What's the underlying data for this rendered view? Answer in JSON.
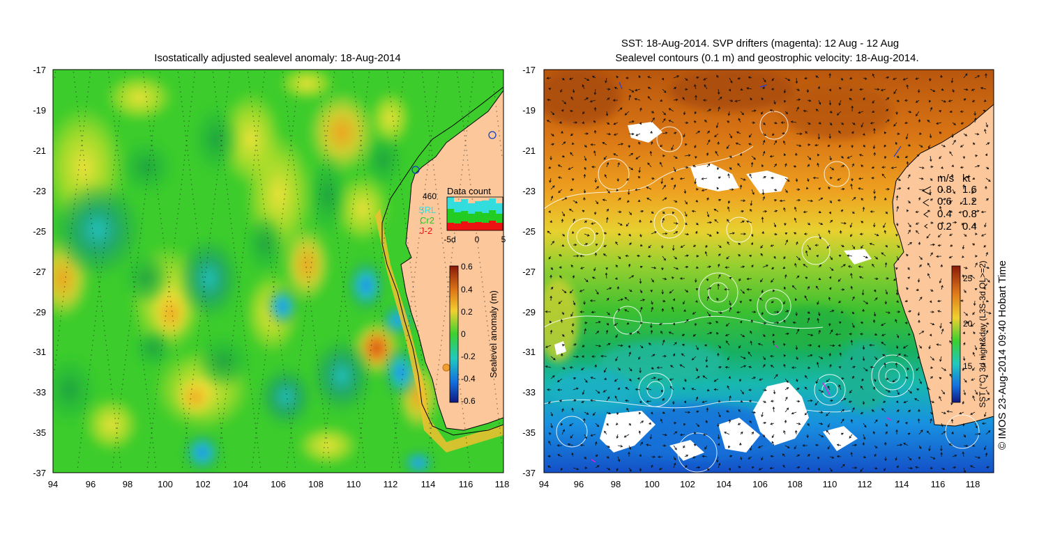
{
  "left_map": {
    "title": "Isostatically adjusted sealevel anomaly: 18-Aug-2014",
    "lat_ticks": [
      "-17",
      "-19",
      "-21",
      "-23",
      "-25",
      "-27",
      "-29",
      "-31",
      "-33",
      "-35",
      "-37"
    ],
    "lon_ticks": [
      "94",
      "96",
      "98",
      "100",
      "102",
      "104",
      "106",
      "108",
      "110",
      "112",
      "114",
      "116",
      "118"
    ],
    "colorbar": {
      "label": "Sealevel anomaly (m)",
      "ticks": [
        "0.6",
        "0.4",
        "0.2",
        "0",
        "-0.2",
        "-0.4",
        "-0.6"
      ]
    },
    "data_count": {
      "title": "Data count",
      "max_label": "460",
      "satellites": [
        {
          "name": "SRL",
          "color": "#33dddd"
        },
        {
          "name": "Cr2",
          "color": "#22cc22"
        },
        {
          "name": "J-2",
          "color": "#ee1111"
        }
      ],
      "x_ticks": [
        "-5d",
        "0",
        "5"
      ]
    }
  },
  "right_map": {
    "title_line1": "SST: 18-Aug-2014. SVP drifters (magenta): 12 Aug - 12 Aug",
    "title_line2": "Sealevel contours (0.1 m) and geostrophic velocity: 18-Aug-2014.",
    "lat_ticks": [
      "-17",
      "-19",
      "-21",
      "-23",
      "-25",
      "-27",
      "-29",
      "-31",
      "-33",
      "-35",
      "-37"
    ],
    "lon_ticks": [
      "94",
      "96",
      "98",
      "100",
      "102",
      "104",
      "106",
      "108",
      "110",
      "112",
      "114",
      "116",
      "118"
    ],
    "velocity_legend": {
      "units": [
        "m/s",
        "kt"
      ],
      "rows": [
        {
          "ms": "0.8",
          "kt": "1.6"
        },
        {
          "ms": "0.6",
          "kt": "1.2"
        },
        {
          "ms": "0.4",
          "kt": "0.8"
        },
        {
          "ms": "0.2",
          "kt": "0.4"
        }
      ]
    },
    "colorbar": {
      "label": "SST (°C) 3d night&day (L3S-3d QL>=2)",
      "ticks": [
        "25",
        "20",
        "15"
      ]
    }
  },
  "credit": "© IMOS 23-Aug-2014 09:40 Hobart Time",
  "colors": {
    "land": "#fcc79a",
    "sla_background": "#22cc22",
    "sst_warm": "#cc6611",
    "sst_cold": "#1166dd"
  }
}
